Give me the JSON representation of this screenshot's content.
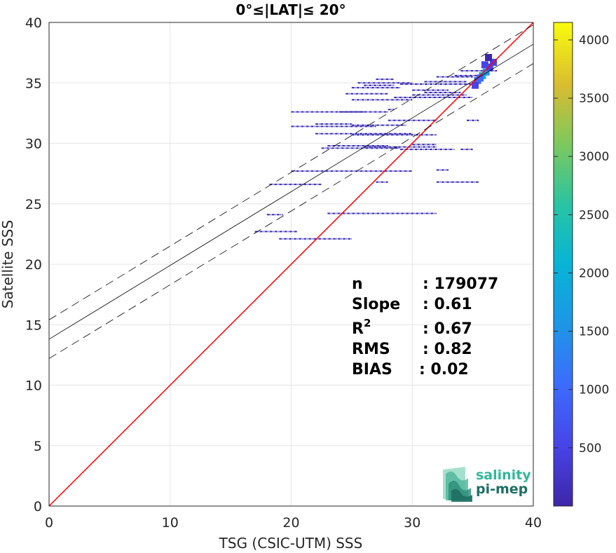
{
  "chart_data": {
    "type": "heatmap",
    "title": "0°≤|LAT|≤ 20°",
    "xlabel": "TSG (CSIC-UTM) SSS",
    "ylabel": "Satellite SSS",
    "xlim": [
      0,
      40
    ],
    "ylim": [
      0,
      40
    ],
    "xticks": [
      "0",
      "10",
      "20",
      "30",
      "40"
    ],
    "yticks": [
      "0",
      "5",
      "10",
      "15",
      "20",
      "25",
      "30",
      "35",
      "40"
    ],
    "grid": true,
    "colorbar": {
      "range": [
        0,
        4150
      ],
      "ticks": [
        "500",
        "1000",
        "1500",
        "2000",
        "2500",
        "3000",
        "3500",
        "4000"
      ],
      "colormap": "parula"
    },
    "lines": [
      {
        "kind": "one-to-one",
        "color": "#ff0000",
        "x": [
          0,
          40
        ],
        "y": [
          0,
          40
        ]
      },
      {
        "kind": "regression",
        "color": "#000000",
        "style": "solid",
        "x": [
          0,
          40
        ],
        "y": [
          13.8,
          38.2
        ]
      },
      {
        "kind": "regression-upper",
        "color": "#000000",
        "style": "dashed",
        "x": [
          0,
          40
        ],
        "y": [
          15.4,
          39.8
        ]
      },
      {
        "kind": "regression-lower",
        "color": "#000000",
        "style": "dashed",
        "x": [
          0,
          40
        ],
        "y": [
          12.2,
          36.6
        ]
      }
    ],
    "density_segments": [
      {
        "x0": 17.0,
        "x1": 20.5,
        "y": 22.7
      },
      {
        "x0": 19.0,
        "x1": 25.0,
        "y": 22.1
      },
      {
        "x0": 18.0,
        "x1": 19.3,
        "y": 24.1
      },
      {
        "x0": 23.0,
        "x1": 32.0,
        "y": 24.2
      },
      {
        "x0": 18.2,
        "x1": 22.5,
        "y": 26.6
      },
      {
        "x0": 27.0,
        "x1": 28.0,
        "y": 26.8
      },
      {
        "x0": 32.0,
        "x1": 35.5,
        "y": 26.8
      },
      {
        "x0": 20.0,
        "x1": 30.0,
        "y": 27.7
      },
      {
        "x0": 32.0,
        "x1": 33.0,
        "y": 27.8
      },
      {
        "x0": 22.5,
        "x1": 29.0,
        "y": 29.6
      },
      {
        "x0": 23.0,
        "x1": 28.0,
        "y": 29.8
      },
      {
        "x0": 26.0,
        "x1": 32.0,
        "y": 29.7
      },
      {
        "x0": 29.0,
        "x1": 33.5,
        "y": 29.5
      },
      {
        "x0": 34.0,
        "x1": 35.0,
        "y": 29.5
      },
      {
        "x0": 30.0,
        "x1": 32.0,
        "y": 29.9
      },
      {
        "x0": 22.0,
        "x1": 30.0,
        "y": 30.8
      },
      {
        "x0": 25.0,
        "x1": 32.0,
        "y": 30.7
      },
      {
        "x0": 20.0,
        "x1": 27.0,
        "y": 31.4
      },
      {
        "x0": 22.0,
        "x1": 25.0,
        "y": 31.6
      },
      {
        "x0": 25.0,
        "x1": 29.5,
        "y": 31.5
      },
      {
        "x0": 28.0,
        "x1": 32.0,
        "y": 31.9
      },
      {
        "x0": 34.5,
        "x1": 35.5,
        "y": 31.9
      },
      {
        "x0": 20.0,
        "x1": 26.0,
        "y": 32.6
      },
      {
        "x0": 24.0,
        "x1": 28.0,
        "y": 32.6
      },
      {
        "x0": 28.0,
        "x1": 28.5,
        "y": 32.8
      },
      {
        "x0": 25.0,
        "x1": 30.0,
        "y": 33.6
      },
      {
        "x0": 28.5,
        "x1": 35.0,
        "y": 33.8
      },
      {
        "x0": 24.5,
        "x1": 28.0,
        "y": 34.1
      },
      {
        "x0": 31.0,
        "x1": 34.0,
        "y": 34.2
      },
      {
        "x0": 30.0,
        "x1": 34.5,
        "y": 34.0
      },
      {
        "x0": 25.0,
        "x1": 29.0,
        "y": 34.6
      },
      {
        "x0": 26.0,
        "x1": 28.5,
        "y": 34.8
      },
      {
        "x0": 27.0,
        "x1": 28.5,
        "y": 35.3
      },
      {
        "x0": 25.5,
        "x1": 30.0,
        "y": 35.0
      },
      {
        "x0": 29.0,
        "x1": 35.0,
        "y": 34.9
      },
      {
        "x0": 30.0,
        "x1": 33.0,
        "y": 34.4
      },
      {
        "x0": 32.0,
        "x1": 35.0,
        "y": 35.5
      },
      {
        "x0": 31.0,
        "x1": 34.5,
        "y": 35.1
      },
      {
        "x0": 33.5,
        "x1": 35.5,
        "y": 35.6
      },
      {
        "x0": 34.0,
        "x1": 37.0,
        "y": 36.0
      }
    ],
    "density_core": [
      {
        "x": 35.4,
        "y": 35.2,
        "count": 1200
      },
      {
        "x": 35.8,
        "y": 35.6,
        "count": 2200
      },
      {
        "x": 36.1,
        "y": 35.9,
        "count": 1800
      },
      {
        "x": 35.6,
        "y": 35.4,
        "count": 900
      },
      {
        "x": 36.4,
        "y": 36.3,
        "count": 600
      },
      {
        "x": 36.7,
        "y": 36.7,
        "count": 300
      },
      {
        "x": 35.2,
        "y": 34.8,
        "count": 450
      },
      {
        "x": 36.0,
        "y": 36.5,
        "count": 350
      },
      {
        "x": 36.3,
        "y": 37.1,
        "count": 150
      }
    ],
    "stats": [
      {
        "label": "n",
        "value": ": 179077"
      },
      {
        "label": "Slope",
        "value": ": 0.61"
      },
      {
        "label": "R",
        "sup": "2",
        "value": ": 0.67"
      },
      {
        "label": "RMS",
        "value": ": 0.82"
      },
      {
        "label": "BIAS",
        "value": ": 0.02"
      }
    ],
    "logo": {
      "line1": "salinity",
      "line2": "pi-mep"
    }
  }
}
